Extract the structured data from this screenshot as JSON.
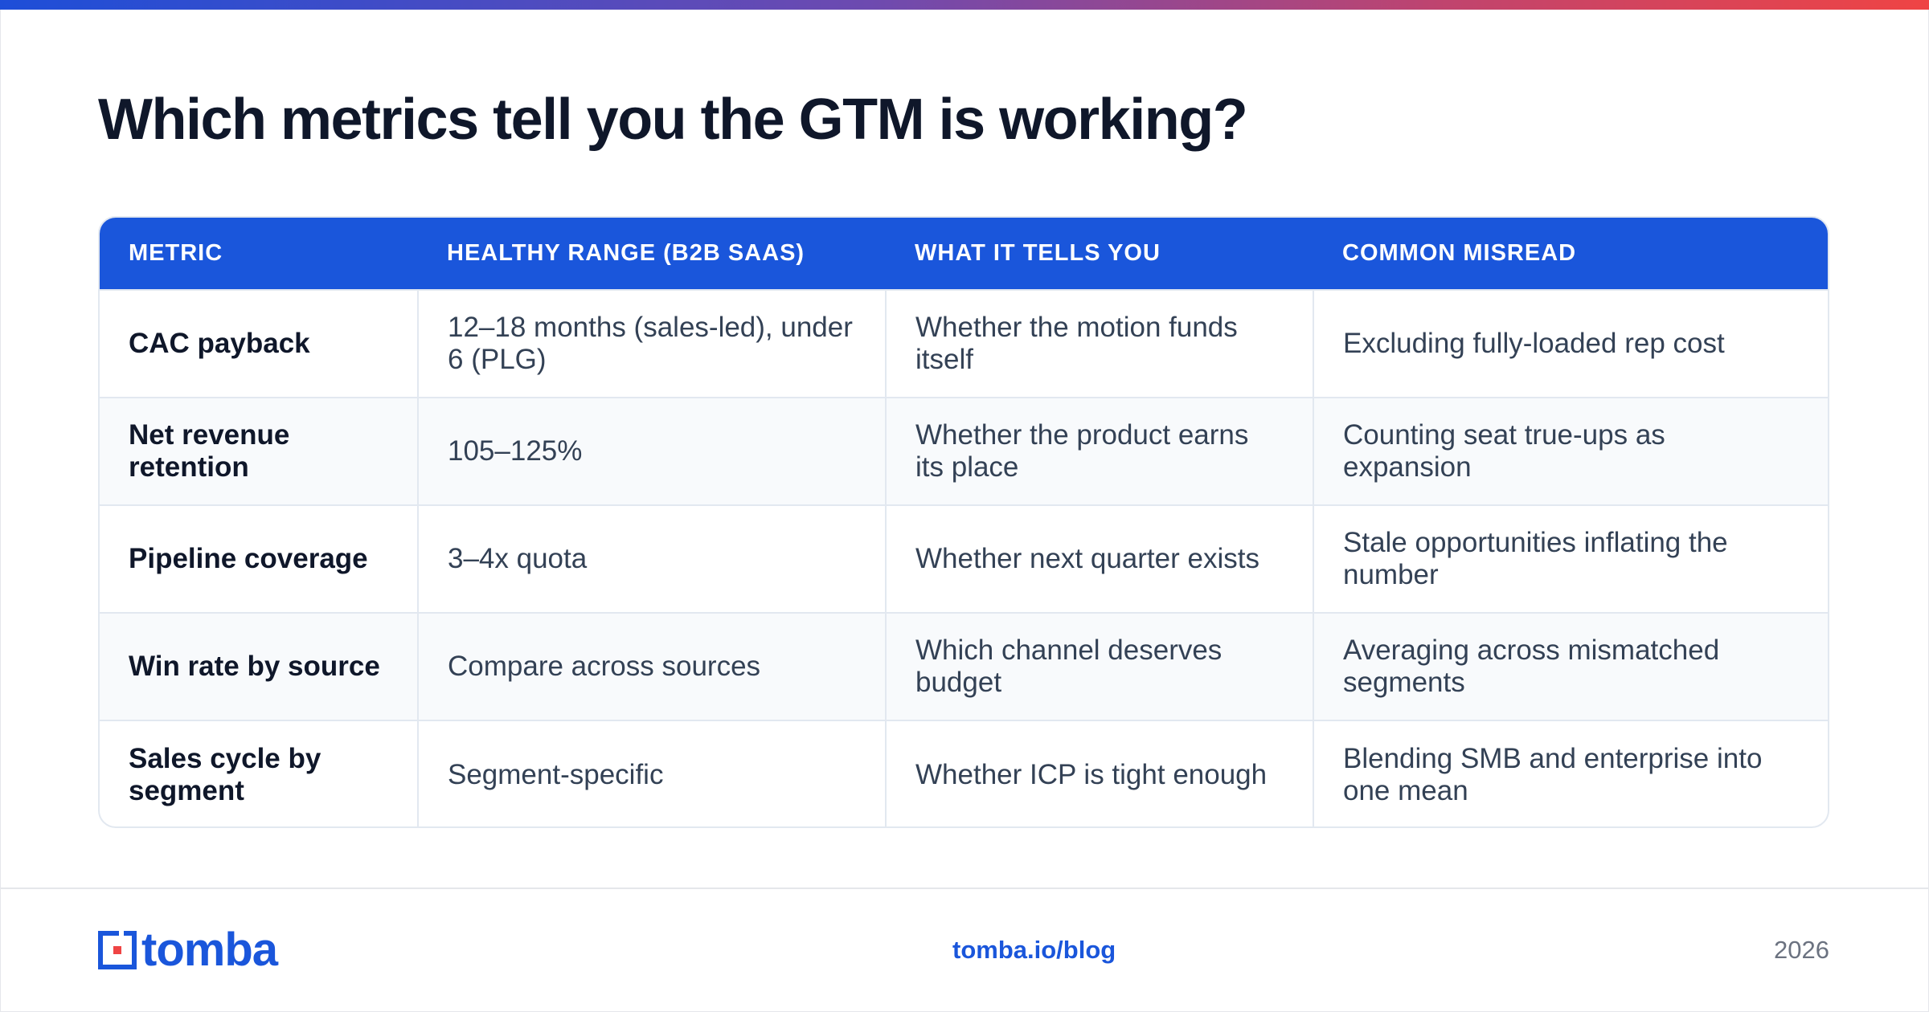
{
  "title": "Which metrics tell you the GTM is working?",
  "table": {
    "headers": [
      "METRIC",
      "HEALTHY RANGE (B2B SAAS)",
      "WHAT IT TELLS YOU",
      "COMMON MISREAD"
    ],
    "rows": [
      [
        "CAC payback",
        "12–18 months (sales-led), under 6 (PLG)",
        "Whether the motion funds itself",
        "Excluding fully-loaded rep cost"
      ],
      [
        "Net revenue retention",
        "105–125%",
        "Whether the product earns its place",
        "Counting seat true-ups as expansion"
      ],
      [
        "Pipeline coverage",
        "3–4x quota",
        "Whether next quarter exists",
        "Stale opportunities inflating the number"
      ],
      [
        "Win rate by source",
        "Compare across sources",
        "Which channel deserves budget",
        "Averaging across mismatched segments"
      ],
      [
        "Sales cycle by segment",
        "Segment-specific",
        "Whether ICP is tight enough",
        "Blending SMB and enterprise into one mean"
      ]
    ]
  },
  "footer": {
    "logo_text": "tomba",
    "link": "tomba.io/blog",
    "year": "2026"
  },
  "colors": {
    "accent": "#1a56db",
    "gradient_start": "#1d4ed8",
    "gradient_end": "#ef4444"
  }
}
